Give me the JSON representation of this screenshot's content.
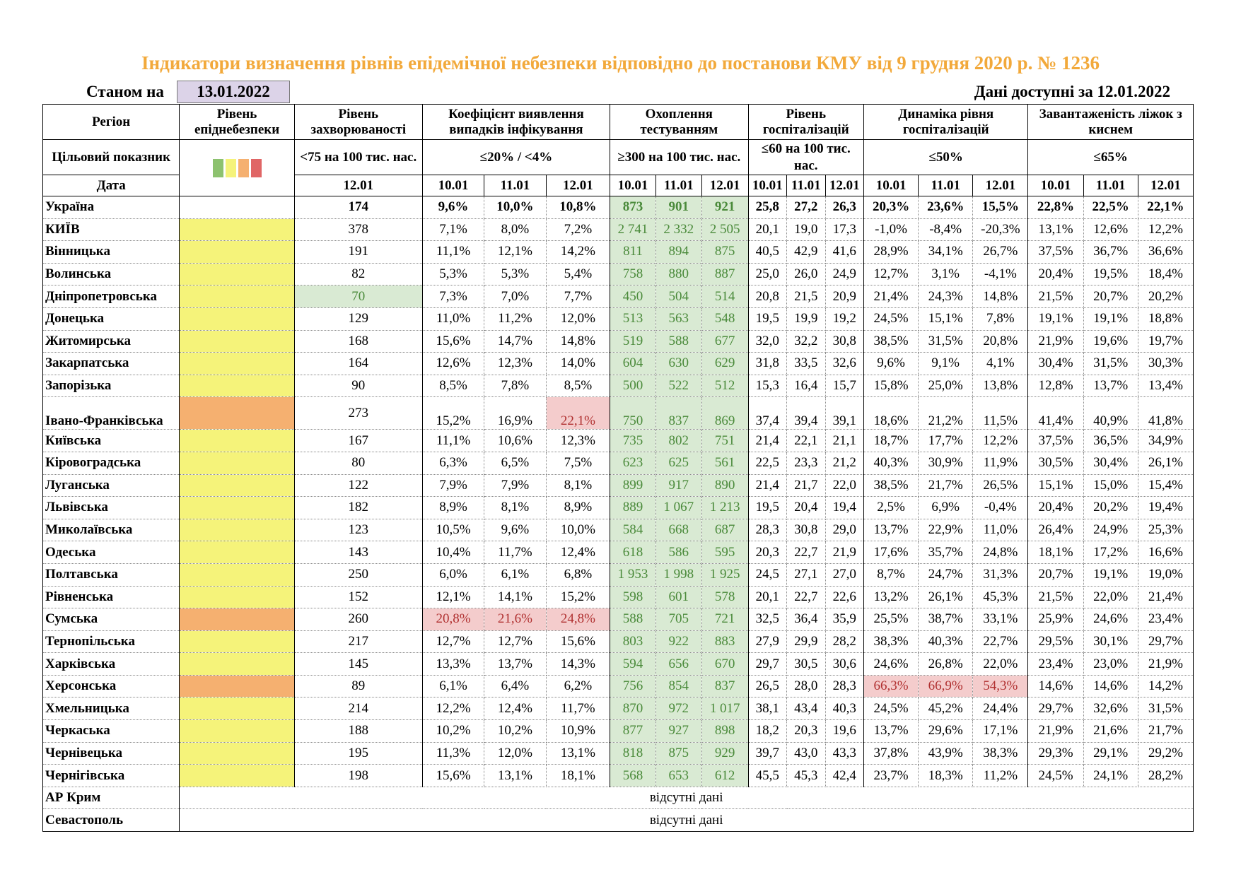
{
  "title": "Індикатори визначення рівнів епідемічної небезпеки відповідно до постанови КМУ від 9 грудня 2020 р. № 1236",
  "as_of_label": "Станом на",
  "as_of_date": "13.01.2022",
  "data_available": "Дані доступні за  12.01.2022",
  "headers": {
    "region": "Регіон",
    "level": "Рівень епіднебезпеки",
    "incidence": "Рівень захворюваності",
    "detection": "Коефіцієнт виявлення випадків інфікування",
    "testing": "Охоплення тестуванням",
    "hosp": "Рівень госпіталізацій",
    "hosp_dyn": "Динаміка рівня госпіталізацій",
    "oxygen": "Завантаженість ліжок з киснем"
  },
  "targets": {
    "label": "Цільовий показник",
    "incidence": "<75 на 100 тис. нас.",
    "detection": "≤20% / <4%",
    "testing": "≥300 на 100 тис. нас.",
    "hosp": "≤60 на 100 тис. нас.",
    "hosp_dyn": "≤50%",
    "oxygen": "≤65%"
  },
  "legend_colors": [
    "#8dc26f",
    "#f5f37a",
    "#f5b070",
    "#e06666"
  ],
  "dates": {
    "label": "Дата",
    "incidence": "12.01",
    "d1": "10.01",
    "d2": "11.01",
    "d3": "12.01"
  },
  "colors": {
    "yellow": "#f5f37a",
    "orange": "#f5b070",
    "test_bg": "#d9ead3",
    "red_bg": "#f4cccc"
  },
  "rows": [
    {
      "name": "Україна",
      "level": "",
      "inc": "174",
      "det": [
        "9,6%",
        "10,0%",
        "10,8%"
      ],
      "test": [
        "873",
        "901",
        "921"
      ],
      "hosp": [
        "25,8",
        "27,2",
        "26,3"
      ],
      "dyn": [
        "20,3%",
        "23,6%",
        "15,5%"
      ],
      "oxy": [
        "22,8%",
        "22,5%",
        "22,1%"
      ]
    },
    {
      "name": "КИЇВ",
      "level": "yellow",
      "inc": "378",
      "det": [
        "7,1%",
        "8,0%",
        "7,2%"
      ],
      "test": [
        "2 741",
        "2 332",
        "2 505"
      ],
      "hosp": [
        "20,1",
        "19,0",
        "17,3"
      ],
      "dyn": [
        "-1,0%",
        "-8,4%",
        "-20,3%"
      ],
      "oxy": [
        "13,1%",
        "12,6%",
        "12,2%"
      ]
    },
    {
      "name": "Вінницька",
      "level": "yellow",
      "inc": "191",
      "det": [
        "11,1%",
        "12,1%",
        "14,2%"
      ],
      "test": [
        "811",
        "894",
        "875"
      ],
      "hosp": [
        "40,5",
        "42,9",
        "41,6"
      ],
      "dyn": [
        "28,9%",
        "34,1%",
        "26,7%"
      ],
      "oxy": [
        "37,5%",
        "36,7%",
        "36,6%"
      ]
    },
    {
      "name": "Волинська",
      "level": "yellow",
      "inc": "82",
      "det": [
        "5,3%",
        "5,3%",
        "5,4%"
      ],
      "test": [
        "758",
        "880",
        "887"
      ],
      "hosp": [
        "25,0",
        "26,0",
        "24,9"
      ],
      "dyn": [
        "12,7%",
        "3,1%",
        "-4,1%"
      ],
      "oxy": [
        "20,4%",
        "19,5%",
        "18,4%"
      ]
    },
    {
      "name": "Дніпропетровська",
      "level": "yellow",
      "inc": "70",
      "inc_green": true,
      "det": [
        "7,3%",
        "7,0%",
        "7,7%"
      ],
      "test": [
        "450",
        "504",
        "514"
      ],
      "hosp": [
        "20,8",
        "21,5",
        "20,9"
      ],
      "dyn": [
        "21,4%",
        "24,3%",
        "14,8%"
      ],
      "oxy": [
        "21,5%",
        "20,7%",
        "20,2%"
      ]
    },
    {
      "name": "Донецька",
      "level": "yellow",
      "inc": "129",
      "det": [
        "11,0%",
        "11,2%",
        "12,0%"
      ],
      "test": [
        "513",
        "563",
        "548"
      ],
      "hosp": [
        "19,5",
        "19,9",
        "19,2"
      ],
      "dyn": [
        "24,5%",
        "15,1%",
        "7,8%"
      ],
      "oxy": [
        "19,1%",
        "19,1%",
        "18,8%"
      ]
    },
    {
      "name": "Житомирська",
      "level": "yellow",
      "inc": "168",
      "det": [
        "15,6%",
        "14,7%",
        "14,8%"
      ],
      "test": [
        "519",
        "588",
        "677"
      ],
      "hosp": [
        "32,0",
        "32,2",
        "30,8"
      ],
      "dyn": [
        "38,5%",
        "31,5%",
        "20,8%"
      ],
      "oxy": [
        "21,9%",
        "19,6%",
        "19,7%"
      ]
    },
    {
      "name": "Закарпатська",
      "level": "yellow",
      "inc": "164",
      "det": [
        "12,6%",
        "12,3%",
        "14,0%"
      ],
      "test": [
        "604",
        "630",
        "629"
      ],
      "hosp": [
        "31,8",
        "33,5",
        "32,6"
      ],
      "dyn": [
        "9,6%",
        "9,1%",
        "4,1%"
      ],
      "oxy": [
        "30,4%",
        "31,5%",
        "30,3%"
      ]
    },
    {
      "name": "Запорізька",
      "level": "yellow",
      "inc": "90",
      "det": [
        "8,5%",
        "7,8%",
        "8,5%"
      ],
      "test": [
        "500",
        "522",
        "512"
      ],
      "hosp": [
        "15,3",
        "16,4",
        "15,7"
      ],
      "dyn": [
        "15,8%",
        "25,0%",
        "13,8%"
      ],
      "oxy": [
        "12,8%",
        "13,7%",
        "13,4%"
      ]
    },
    {
      "name": "Івано-Франківська",
      "tall": true,
      "level": "orange",
      "inc": "273",
      "det": [
        "15,2%",
        "16,9%",
        "22,1%"
      ],
      "det_red": [
        2
      ],
      "test": [
        "750",
        "837",
        "869"
      ],
      "hosp": [
        "37,4",
        "39,4",
        "39,1"
      ],
      "dyn": [
        "18,6%",
        "21,2%",
        "11,5%"
      ],
      "oxy": [
        "41,4%",
        "40,9%",
        "41,8%"
      ]
    },
    {
      "name": "Київська",
      "level": "yellow",
      "inc": "167",
      "det": [
        "11,1%",
        "10,6%",
        "12,3%"
      ],
      "test": [
        "735",
        "802",
        "751"
      ],
      "hosp": [
        "21,4",
        "22,1",
        "21,1"
      ],
      "dyn": [
        "18,7%",
        "17,7%",
        "12,2%"
      ],
      "oxy": [
        "37,5%",
        "36,5%",
        "34,9%"
      ]
    },
    {
      "name": "Кіровоградська",
      "level": "yellow",
      "inc": "80",
      "det": [
        "6,3%",
        "6,5%",
        "7,5%"
      ],
      "test": [
        "623",
        "625",
        "561"
      ],
      "hosp": [
        "22,5",
        "23,3",
        "21,2"
      ],
      "dyn": [
        "40,3%",
        "30,9%",
        "11,9%"
      ],
      "oxy": [
        "30,5%",
        "30,4%",
        "26,1%"
      ]
    },
    {
      "name": "Луганська",
      "level": "yellow",
      "inc": "122",
      "det": [
        "7,9%",
        "7,9%",
        "8,1%"
      ],
      "test": [
        "899",
        "917",
        "890"
      ],
      "hosp": [
        "21,4",
        "21,7",
        "22,0"
      ],
      "dyn": [
        "38,5%",
        "21,7%",
        "26,5%"
      ],
      "oxy": [
        "15,1%",
        "15,0%",
        "15,4%"
      ]
    },
    {
      "name": "Львівська",
      "level": "yellow",
      "inc": "182",
      "det": [
        "8,9%",
        "8,1%",
        "8,9%"
      ],
      "test": [
        "889",
        "1 067",
        "1 213"
      ],
      "hosp": [
        "19,5",
        "20,4",
        "19,4"
      ],
      "dyn": [
        "2,5%",
        "6,9%",
        "-0,4%"
      ],
      "oxy": [
        "20,4%",
        "20,2%",
        "19,4%"
      ]
    },
    {
      "name": "Миколаївська",
      "level": "yellow",
      "inc": "123",
      "det": [
        "10,5%",
        "9,6%",
        "10,0%"
      ],
      "test": [
        "584",
        "668",
        "687"
      ],
      "hosp": [
        "28,3",
        "30,8",
        "29,0"
      ],
      "dyn": [
        "13,7%",
        "22,9%",
        "11,0%"
      ],
      "oxy": [
        "26,4%",
        "24,9%",
        "25,3%"
      ]
    },
    {
      "name": "Одеська",
      "level": "yellow",
      "inc": "143",
      "det": [
        "10,4%",
        "11,7%",
        "12,4%"
      ],
      "test": [
        "618",
        "586",
        "595"
      ],
      "hosp": [
        "20,3",
        "22,7",
        "21,9"
      ],
      "dyn": [
        "17,6%",
        "35,7%",
        "24,8%"
      ],
      "oxy": [
        "18,1%",
        "17,2%",
        "16,6%"
      ]
    },
    {
      "name": "Полтавська",
      "level": "yellow",
      "inc": "250",
      "det": [
        "6,0%",
        "6,1%",
        "6,8%"
      ],
      "test": [
        "1 953",
        "1 998",
        "1 925"
      ],
      "hosp": [
        "24,5",
        "27,1",
        "27,0"
      ],
      "dyn": [
        "8,7%",
        "24,7%",
        "31,3%"
      ],
      "oxy": [
        "20,7%",
        "19,1%",
        "19,0%"
      ]
    },
    {
      "name": "Рівненська",
      "level": "yellow",
      "inc": "152",
      "det": [
        "12,1%",
        "14,1%",
        "15,2%"
      ],
      "test": [
        "598",
        "601",
        "578"
      ],
      "hosp": [
        "20,1",
        "22,7",
        "22,6"
      ],
      "dyn": [
        "13,2%",
        "26,1%",
        "45,3%"
      ],
      "oxy": [
        "21,5%",
        "22,0%",
        "21,4%"
      ]
    },
    {
      "name": "Сумська",
      "level": "orange",
      "inc": "260",
      "det": [
        "20,8%",
        "21,6%",
        "24,8%"
      ],
      "det_red": [
        0,
        1,
        2
      ],
      "test": [
        "588",
        "705",
        "721"
      ],
      "hosp": [
        "32,5",
        "36,4",
        "35,9"
      ],
      "dyn": [
        "25,5%",
        "38,7%",
        "33,1%"
      ],
      "oxy": [
        "25,9%",
        "24,6%",
        "23,4%"
      ]
    },
    {
      "name": "Тернопільська",
      "level": "yellow",
      "inc": "217",
      "det": [
        "12,7%",
        "12,7%",
        "15,6%"
      ],
      "test": [
        "803",
        "922",
        "883"
      ],
      "hosp": [
        "27,9",
        "29,9",
        "28,2"
      ],
      "dyn": [
        "38,3%",
        "40,3%",
        "22,7%"
      ],
      "oxy": [
        "29,5%",
        "30,1%",
        "29,7%"
      ]
    },
    {
      "name": "Харківська",
      "level": "yellow",
      "inc": "145",
      "det": [
        "13,3%",
        "13,7%",
        "14,3%"
      ],
      "test": [
        "594",
        "656",
        "670"
      ],
      "hosp": [
        "29,7",
        "30,5",
        "30,6"
      ],
      "dyn": [
        "24,6%",
        "26,8%",
        "22,0%"
      ],
      "oxy": [
        "23,4%",
        "23,0%",
        "21,9%"
      ]
    },
    {
      "name": "Херсонська",
      "level": "orange",
      "inc": "89",
      "det": [
        "6,1%",
        "6,4%",
        "6,2%"
      ],
      "test": [
        "756",
        "854",
        "837"
      ],
      "hosp": [
        "26,5",
        "28,0",
        "28,3"
      ],
      "dyn": [
        "66,3%",
        "66,9%",
        "54,3%"
      ],
      "dyn_red": [
        0,
        1,
        2
      ],
      "oxy": [
        "14,6%",
        "14,6%",
        "14,2%"
      ]
    },
    {
      "name": "Хмельницька",
      "level": "yellow",
      "inc": "214",
      "det": [
        "12,2%",
        "12,4%",
        "11,7%"
      ],
      "test": [
        "870",
        "972",
        "1 017"
      ],
      "hosp": [
        "38,1",
        "43,4",
        "40,3"
      ],
      "dyn": [
        "24,5%",
        "45,2%",
        "24,4%"
      ],
      "oxy": [
        "29,7%",
        "32,6%",
        "31,5%"
      ]
    },
    {
      "name": "Черкаська",
      "level": "yellow",
      "inc": "188",
      "det": [
        "10,2%",
        "10,2%",
        "10,9%"
      ],
      "test": [
        "877",
        "927",
        "898"
      ],
      "hosp": [
        "18,2",
        "20,3",
        "19,6"
      ],
      "dyn": [
        "13,7%",
        "29,6%",
        "17,1%"
      ],
      "oxy": [
        "21,9%",
        "21,6%",
        "21,7%"
      ]
    },
    {
      "name": "Чернівецька",
      "level": "yellow",
      "inc": "195",
      "det": [
        "11,3%",
        "12,0%",
        "13,1%"
      ],
      "test": [
        "818",
        "875",
        "929"
      ],
      "hosp": [
        "39,7",
        "43,0",
        "43,3"
      ],
      "dyn": [
        "37,8%",
        "43,9%",
        "38,3%"
      ],
      "oxy": [
        "29,3%",
        "29,1%",
        "29,2%"
      ]
    },
    {
      "name": "Чернігівська",
      "level": "yellow",
      "inc": "198",
      "det": [
        "15,6%",
        "13,1%",
        "18,1%"
      ],
      "test": [
        "568",
        "653",
        "612"
      ],
      "hosp": [
        "45,5",
        "45,3",
        "42,4"
      ],
      "dyn": [
        "23,7%",
        "18,3%",
        "11,2%"
      ],
      "oxy": [
        "24,5%",
        "24,1%",
        "28,2%"
      ]
    }
  ],
  "na_rows": [
    {
      "name": "АР Крим",
      "text": "відсутні дані"
    },
    {
      "name": "Севастополь",
      "text": "відсутні дані"
    }
  ]
}
